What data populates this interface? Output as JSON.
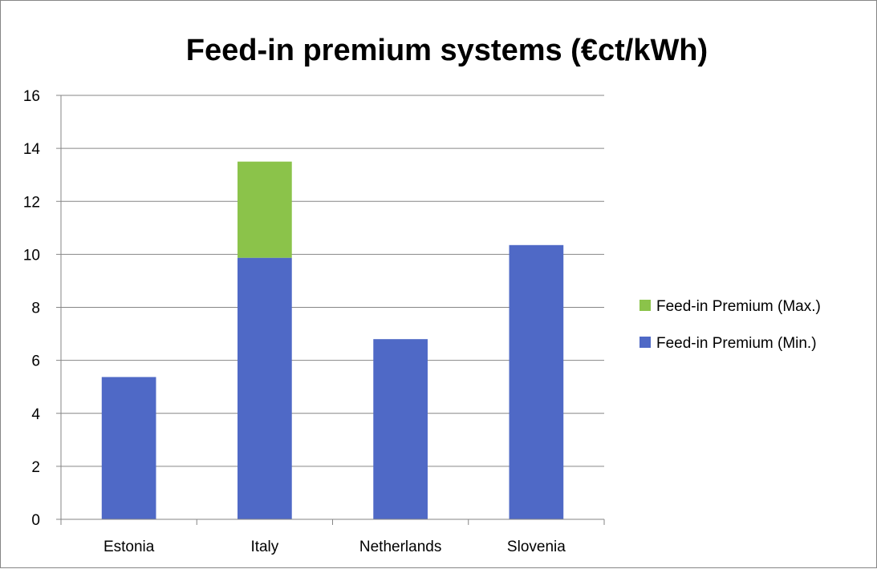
{
  "chart_data": {
    "type": "bar",
    "stacked": true,
    "title": "Feed-in premium systems  (€ct/kWh)",
    "xlabel": "",
    "ylabel": "",
    "categories": [
      "Estonia",
      "Italy",
      "Netherlands",
      "Slovenia"
    ],
    "series": [
      {
        "name": "Feed-in Premium (Min.)",
        "values": [
          5.37,
          9.87,
          6.8,
          10.35
        ],
        "color": "#4f69c6"
      },
      {
        "name": "Feed-in Premium (Max.)",
        "values": [
          0,
          3.63,
          0,
          0
        ],
        "color": "#8bc34a"
      }
    ],
    "ylim": [
      0,
      16
    ],
    "yticks": [
      0,
      2,
      4,
      6,
      8,
      10,
      12,
      14,
      16
    ],
    "grid": true,
    "legend_position": "right"
  }
}
